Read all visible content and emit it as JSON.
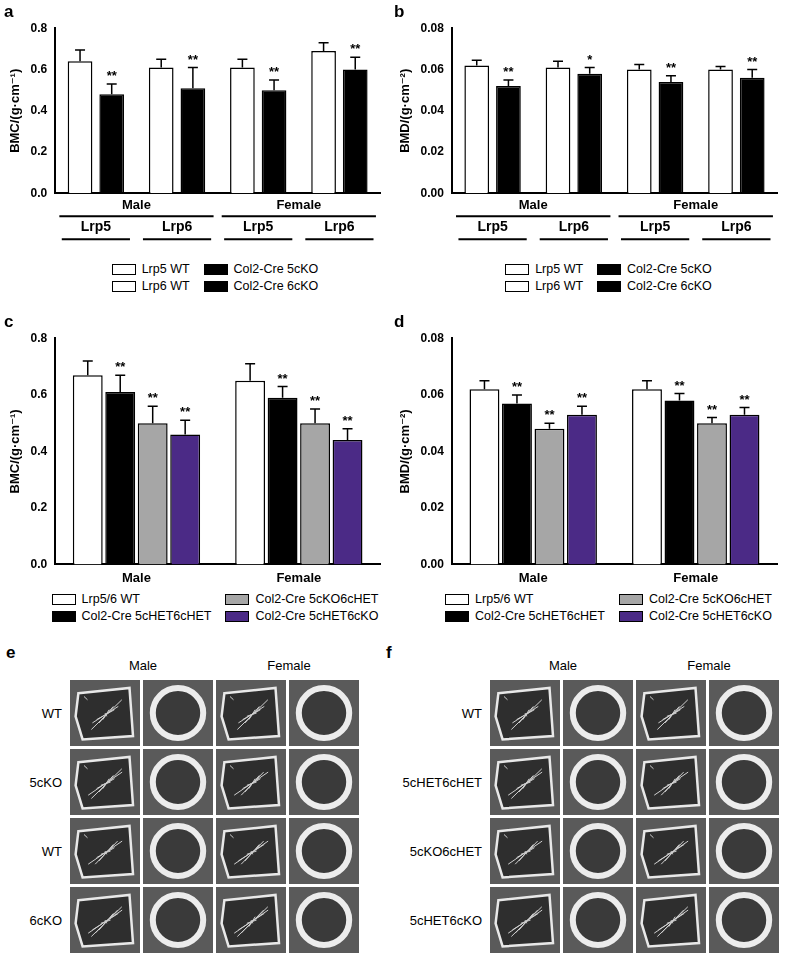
{
  "chart_data": [
    {
      "type": "bar",
      "title": "a",
      "ylabel": "BMC/(g·cm⁻¹)",
      "categories": [
        "Lrp5",
        "Lrp6",
        "Lrp5",
        "Lrp6"
      ],
      "groups": [
        "Male",
        "Male",
        "Female",
        "Female"
      ],
      "ylim": [
        0,
        0.8
      ],
      "yticks": [
        {
          "value": 0,
          "label": "0.0"
        },
        0.2,
        0.4,
        0.6,
        0.8
      ],
      "grid": false,
      "legend": "bottom",
      "series": [
        {
          "name": "Lrp5 WT",
          "color": "#ffffff",
          "values": [
            0.64,
            null,
            0.61,
            null
          ],
          "errors": [
            0.055,
            null,
            0.04,
            null
          ],
          "significance": [
            null,
            null,
            null,
            null
          ]
        },
        {
          "name": "Lrp6 WT",
          "color": "#ffffff",
          "values": [
            null,
            0.61,
            null,
            0.69
          ],
          "errors": [
            null,
            0.04,
            null,
            0.04
          ],
          "significance": [
            null,
            null,
            null,
            null
          ]
        },
        {
          "name": "Col2-Cre 5cKO",
          "color": "#000000",
          "values": [
            0.48,
            null,
            0.5,
            null
          ],
          "errors": [
            0.05,
            null,
            0.05,
            null
          ],
          "significance": [
            "**",
            null,
            "**",
            null
          ]
        },
        {
          "name": "Col2-Cre 6cKO",
          "color": "#000000",
          "values": [
            null,
            0.51,
            null,
            0.6
          ],
          "errors": [
            null,
            0.1,
            null,
            0.06
          ],
          "significance": [
            null,
            "**",
            null,
            "**"
          ]
        }
      ]
    },
    {
      "type": "bar",
      "title": "b",
      "ylabel": "BMD/(g·cm⁻²)",
      "categories": [
        "Lrp5",
        "Lrp6",
        "Lrp5",
        "Lrp6"
      ],
      "groups": [
        "Male",
        "Male",
        "Female",
        "Female"
      ],
      "ylim": [
        0,
        0.08
      ],
      "yticks": [
        {
          "value": 0,
          "label": "0.00"
        },
        0.02,
        0.04,
        0.06,
        0.08
      ],
      "grid": false,
      "legend": "bottom",
      "series": [
        {
          "name": "Lrp5 WT",
          "color": "#ffffff",
          "values": [
            0.062,
            null,
            0.06,
            null
          ],
          "errors": [
            0.0025,
            null,
            0.0025,
            null
          ],
          "significance": [
            null,
            null,
            null,
            null
          ]
        },
        {
          "name": "Lrp6 WT",
          "color": "#ffffff",
          "values": [
            null,
            0.061,
            null,
            0.06
          ],
          "errors": [
            null,
            0.003,
            null,
            0.0015
          ],
          "significance": [
            null,
            null,
            null,
            null
          ]
        },
        {
          "name": "Col2-Cre 5cKO",
          "color": "#000000",
          "values": [
            0.052,
            null,
            0.054,
            null
          ],
          "errors": [
            0.003,
            null,
            0.003,
            null
          ],
          "significance": [
            "**",
            null,
            "**",
            null
          ]
        },
        {
          "name": "Col2-Cre 6cKO",
          "color": "#000000",
          "values": [
            null,
            0.058,
            null,
            0.056
          ],
          "errors": [
            null,
            0.003,
            null,
            0.004
          ],
          "significance": [
            null,
            "*",
            null,
            "**"
          ]
        }
      ]
    },
    {
      "type": "bar",
      "title": "c",
      "ylabel": "BMC/(g·cm⁻¹)",
      "categories": [
        "Male",
        "Female"
      ],
      "ylim": [
        0,
        0.8
      ],
      "yticks": [
        {
          "value": 0,
          "label": "0.0"
        },
        0.2,
        0.4,
        0.6,
        0.8
      ],
      "grid": false,
      "legend": "bottom",
      "series": [
        {
          "name": "Lrp5/6 WT",
          "color": "#ffffff",
          "values": [
            0.67,
            0.65
          ],
          "errors": [
            0.05,
            0.06
          ],
          "significance": [
            null,
            null
          ]
        },
        {
          "name": "Col2-Cre 5cHET6cHET",
          "color": "#000000",
          "values": [
            0.61,
            0.59
          ],
          "errors": [
            0.06,
            0.04
          ],
          "significance": [
            "**",
            "**"
          ]
        },
        {
          "name": "Col2-Cre 5cKO6cHET",
          "color": "#a6a6a6",
          "values": [
            0.5,
            0.5
          ],
          "errors": [
            0.06,
            0.05
          ],
          "significance": [
            "**",
            "**"
          ]
        },
        {
          "name": "Col2-Cre 5cHET6cKO",
          "color": "#4b2a86",
          "values": [
            0.46,
            0.44
          ],
          "errors": [
            0.05,
            0.04
          ],
          "significance": [
            "**",
            "**"
          ]
        }
      ]
    },
    {
      "type": "bar",
      "title": "d",
      "ylabel": "BMD/(g·cm⁻²)",
      "categories": [
        "Male",
        "Female"
      ],
      "ylim": [
        0,
        0.08
      ],
      "yticks": [
        {
          "value": 0,
          "label": "0.00"
        },
        0.02,
        0.04,
        0.06,
        0.08
      ],
      "grid": false,
      "legend": "bottom",
      "series": [
        {
          "name": "Lrp5/6 WT",
          "color": "#ffffff",
          "values": [
            0.062,
            0.062
          ],
          "errors": [
            0.003,
            0.003
          ],
          "significance": [
            null,
            null
          ]
        },
        {
          "name": "Col2-Cre 5cHET6cHET",
          "color": "#000000",
          "values": [
            0.057,
            0.058
          ],
          "errors": [
            0.003,
            0.0025
          ],
          "significance": [
            "**",
            "**"
          ]
        },
        {
          "name": "Col2-Cre 5cKO6cHET",
          "color": "#a6a6a6",
          "values": [
            0.048,
            0.05
          ],
          "errors": [
            0.002,
            0.002
          ],
          "significance": [
            "**",
            "**"
          ]
        },
        {
          "name": "Col2-Cre 5cHET6cKO",
          "color": "#4b2a86",
          "values": [
            0.053,
            0.053
          ],
          "errors": [
            0.003,
            0.0025
          ],
          "significance": [
            "**",
            "**"
          ]
        }
      ]
    }
  ],
  "image_panels": [
    {
      "panel": "e",
      "columns": [
        "Male",
        "Female"
      ],
      "rows": [
        "WT",
        "5cKO",
        "WT",
        "6cKO"
      ]
    },
    {
      "panel": "f",
      "columns": [
        "Male",
        "Female"
      ],
      "rows": [
        "WT",
        "5cHET6cHET",
        "5cKO6cHET",
        "5cHET6cKO"
      ]
    }
  ]
}
